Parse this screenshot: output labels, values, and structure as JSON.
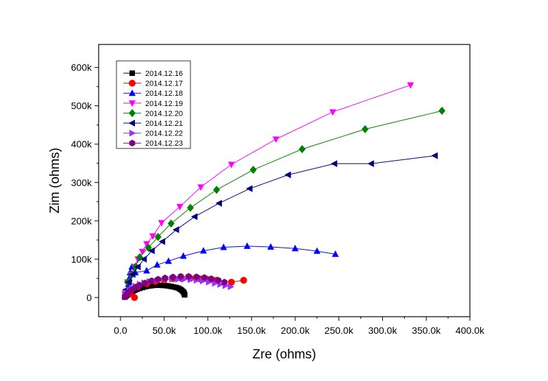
{
  "chart_data": {
    "type": "scatter",
    "xlabel": "Zre (ohms)",
    "ylabel": "Zim (ohms)",
    "xlim": [
      -25000,
      400000
    ],
    "ylim": [
      -50000,
      660000
    ],
    "x_ticks": [
      0,
      50000,
      100000,
      150000,
      200000,
      250000,
      300000,
      350000,
      400000
    ],
    "x_tick_labels": [
      "0.0",
      "50.0k",
      "100.0k",
      "150.0k",
      "200.0k",
      "250.0k",
      "300.0k",
      "350.0k",
      "400.0k"
    ],
    "y_ticks": [
      0,
      100000,
      200000,
      300000,
      400000,
      500000,
      600000
    ],
    "y_tick_labels": [
      "0",
      "100k",
      "200k",
      "300k",
      "400k",
      "500k",
      "600k"
    ],
    "grid": false,
    "legend_position": "top-left",
    "series": [
      {
        "name": "2014.12.16",
        "color": "#000000",
        "marker": "square",
        "points": [
          [
            5000,
            1000
          ],
          [
            6500,
            4000
          ],
          [
            8000,
            7000
          ],
          [
            10000,
            10000
          ],
          [
            12000,
            13000
          ],
          [
            14000,
            16000
          ],
          [
            16500,
            19000
          ],
          [
            19000,
            21500
          ],
          [
            22000,
            24000
          ],
          [
            25000,
            26000
          ],
          [
            28000,
            28000
          ],
          [
            31000,
            29500
          ],
          [
            34000,
            30500
          ],
          [
            37000,
            31500
          ],
          [
            40000,
            32000
          ],
          [
            43000,
            32000
          ],
          [
            46000,
            32000
          ],
          [
            49000,
            31500
          ],
          [
            52000,
            31000
          ],
          [
            55000,
            30000
          ],
          [
            58000,
            29000
          ],
          [
            61000,
            27500
          ],
          [
            64000,
            26000
          ],
          [
            66500,
            24000
          ],
          [
            68500,
            21500
          ],
          [
            70000,
            19000
          ],
          [
            71500,
            16000
          ],
          [
            72500,
            13000
          ],
          [
            73000,
            10000
          ],
          [
            73500,
            7000
          ]
        ]
      },
      {
        "name": "2014.12.17",
        "color": "#ff0000",
        "marker": "circle",
        "points": [
          [
            16000,
            0
          ],
          [
            11000,
            10000
          ],
          [
            12000,
            20000
          ],
          [
            20000,
            29000
          ],
          [
            30000,
            36000
          ],
          [
            40000,
            42000
          ],
          [
            50000,
            46000
          ],
          [
            60000,
            49000
          ],
          [
            70000,
            50000
          ],
          [
            80000,
            50000
          ],
          [
            90000,
            49000
          ],
          [
            100000,
            47000
          ],
          [
            110000,
            45000
          ],
          [
            127000,
            40000
          ],
          [
            141000,
            45000
          ]
        ]
      },
      {
        "name": "2014.12.18",
        "color": "#0000ff",
        "marker": "triangle-up",
        "points": [
          [
            5000,
            5000
          ],
          [
            8000,
            20000
          ],
          [
            9000,
            35000
          ],
          [
            10000,
            50000
          ],
          [
            11000,
            65000
          ],
          [
            13000,
            80000
          ],
          [
            17000,
            65000
          ],
          [
            30000,
            70000
          ],
          [
            42000,
            85000
          ],
          [
            55000,
            95000
          ],
          [
            72000,
            108000
          ],
          [
            95000,
            122000
          ],
          [
            118000,
            131000
          ],
          [
            145000,
            134000
          ],
          [
            172000,
            132000
          ],
          [
            200000,
            128000
          ],
          [
            225000,
            121000
          ],
          [
            246000,
            113000
          ]
        ]
      },
      {
        "name": "2014.12.19",
        "color": "#ff00ff",
        "marker": "triangle-down",
        "points": [
          [
            5000,
            10000
          ],
          [
            8000,
            40000
          ],
          [
            12000,
            60000
          ],
          [
            16000,
            80000
          ],
          [
            20000,
            100000
          ],
          [
            25000,
            120000
          ],
          [
            30000,
            140000
          ],
          [
            37000,
            160000
          ],
          [
            47000,
            195000
          ],
          [
            68000,
            237000
          ],
          [
            92000,
            288000
          ],
          [
            127000,
            347000
          ],
          [
            178000,
            413000
          ],
          [
            243000,
            484000
          ],
          [
            332000,
            554000
          ]
        ]
      },
      {
        "name": "2014.12.20",
        "color": "#008000",
        "marker": "diamond",
        "points": [
          [
            8000,
            40000
          ],
          [
            13000,
            60000
          ],
          [
            17000,
            80000
          ],
          [
            22000,
            105000
          ],
          [
            32000,
            130000
          ],
          [
            43000,
            158000
          ],
          [
            58000,
            193000
          ],
          [
            80000,
            234000
          ],
          [
            110000,
            281000
          ],
          [
            152000,
            333000
          ],
          [
            208000,
            387000
          ],
          [
            280000,
            439000
          ],
          [
            368000,
            487000
          ]
        ]
      },
      {
        "name": "2014.12.21",
        "color": "#000080",
        "marker": "triangle-left",
        "points": [
          [
            6000,
            20000
          ],
          [
            10000,
            40000
          ],
          [
            14000,
            60000
          ],
          [
            20000,
            80000
          ],
          [
            27000,
            100000
          ],
          [
            36000,
            122000
          ],
          [
            48000,
            146000
          ],
          [
            64000,
            177000
          ],
          [
            85000,
            211000
          ],
          [
            113000,
            246000
          ],
          [
            148000,
            284000
          ],
          [
            192000,
            320000
          ],
          [
            245000,
            349000
          ],
          [
            287000,
            349000
          ],
          [
            360000,
            370000
          ]
        ]
      },
      {
        "name": "2014.12.22",
        "color": "#9933ff",
        "marker": "triangle-right",
        "points": [
          [
            5000,
            5000
          ],
          [
            7000,
            12000
          ],
          [
            10000,
            19000
          ],
          [
            13000,
            25000
          ],
          [
            17000,
            30000
          ],
          [
            22000,
            35000
          ],
          [
            27000,
            38500
          ],
          [
            33000,
            41500
          ],
          [
            39000,
            44000
          ],
          [
            45000,
            46000
          ],
          [
            52000,
            47500
          ],
          [
            59000,
            48000
          ],
          [
            66000,
            48000
          ],
          [
            73000,
            47500
          ],
          [
            80000,
            46500
          ],
          [
            87000,
            45000
          ],
          [
            94000,
            43000
          ],
          [
            101000,
            40000
          ],
          [
            108000,
            37000
          ],
          [
            114000,
            34000
          ],
          [
            120000,
            31000
          ],
          [
            126000,
            28000
          ]
        ]
      },
      {
        "name": "2014.12.23",
        "color": "#7f007f",
        "marker": "hexagon",
        "points": [
          [
            5000,
            2000
          ],
          [
            7000,
            8000
          ],
          [
            9500,
            14000
          ],
          [
            13000,
            20000
          ],
          [
            17000,
            26000
          ],
          [
            22000,
            32000
          ],
          [
            28000,
            38000
          ],
          [
            35000,
            43000
          ],
          [
            43000,
            47500
          ],
          [
            51000,
            51000
          ],
          [
            60000,
            53500
          ],
          [
            69000,
            55000
          ],
          [
            78000,
            55000
          ],
          [
            87000,
            54000
          ],
          [
            96000,
            52000
          ],
          [
            104000,
            49000
          ],
          [
            112000,
            45000
          ],
          [
            119000,
            40000
          ]
        ]
      }
    ]
  }
}
